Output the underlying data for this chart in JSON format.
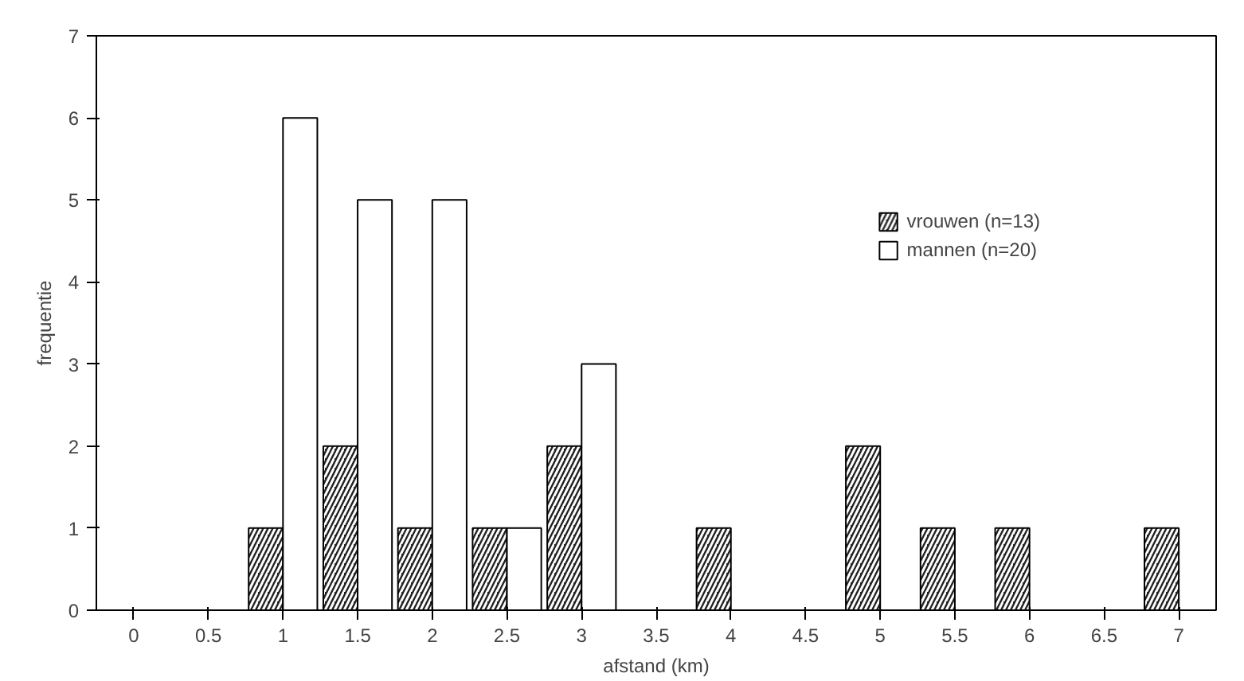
{
  "chart_data": {
    "type": "bar",
    "xlabel": "afstand (km)",
    "ylabel": "frequentie",
    "categories": [
      "0",
      "0.5",
      "1",
      "1.5",
      "2",
      "2.5",
      "3",
      "3.5",
      "4",
      "4.5",
      "5",
      "5.5",
      "6",
      "6.5",
      "7"
    ],
    "series": [
      {
        "name": "vrouwen (n=13)",
        "color": "#222222",
        "values": [
          0,
          0,
          1,
          2,
          1,
          1,
          2,
          0,
          1,
          0,
          2,
          1,
          1,
          0,
          1
        ]
      },
      {
        "name": "mannen (n=20)",
        "color": "#ffffff",
        "values": [
          0,
          0,
          6,
          5,
          5,
          1,
          3,
          0,
          0,
          0,
          0,
          0,
          0,
          0,
          0
        ]
      }
    ],
    "ylim": [
      0,
      7
    ],
    "yticks": [
      0,
      1,
      2,
      3,
      4,
      5,
      6,
      7
    ],
    "grid": false,
    "legend": "top right"
  }
}
